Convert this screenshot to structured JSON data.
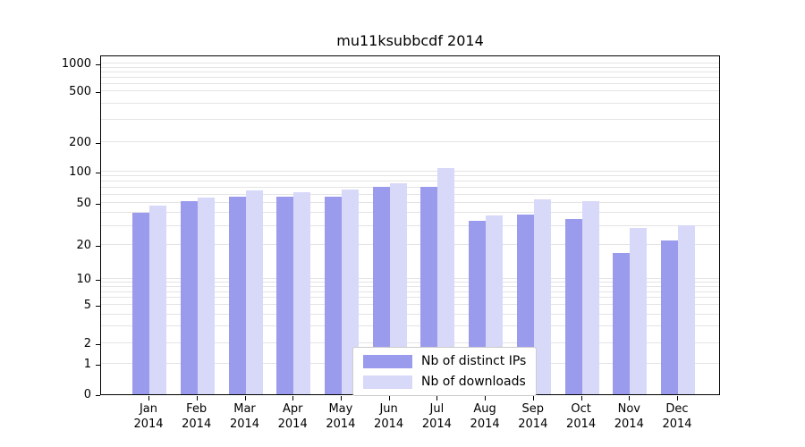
{
  "chart_data": {
    "type": "bar",
    "title": "mu11ksubbcdf 2014",
    "categories": [
      "Jan",
      "Feb",
      "Mar",
      "Apr",
      "May",
      "Jun",
      "Jul",
      "Aug",
      "Sep",
      "Oct",
      "Nov",
      "Dec"
    ],
    "year_label": "2014",
    "series": [
      {
        "name": "Nb of distinct IPs",
        "color": "#9b9bee",
        "values": [
          40,
          52,
          58,
          57,
          58,
          72,
          72,
          34,
          39,
          35,
          17,
          22
        ]
      },
      {
        "name": "Nb of downloads",
        "color": "#d8d8f8",
        "values": [
          47,
          56,
          66,
          63,
          68,
          78,
          108,
          38,
          54,
          52,
          29,
          31
        ]
      }
    ],
    "y_ticks": [
      0,
      1,
      2,
      5,
      10,
      20,
      50,
      100,
      200,
      500,
      1000
    ],
    "y_scale": "symlog",
    "ylim": [
      0,
      1100
    ],
    "grid": "horizontal",
    "grid_color": "#e4e4e4",
    "axis_color": "#000000",
    "legend_position": "lower-center-inside",
    "background_color": "#ffffff"
  }
}
